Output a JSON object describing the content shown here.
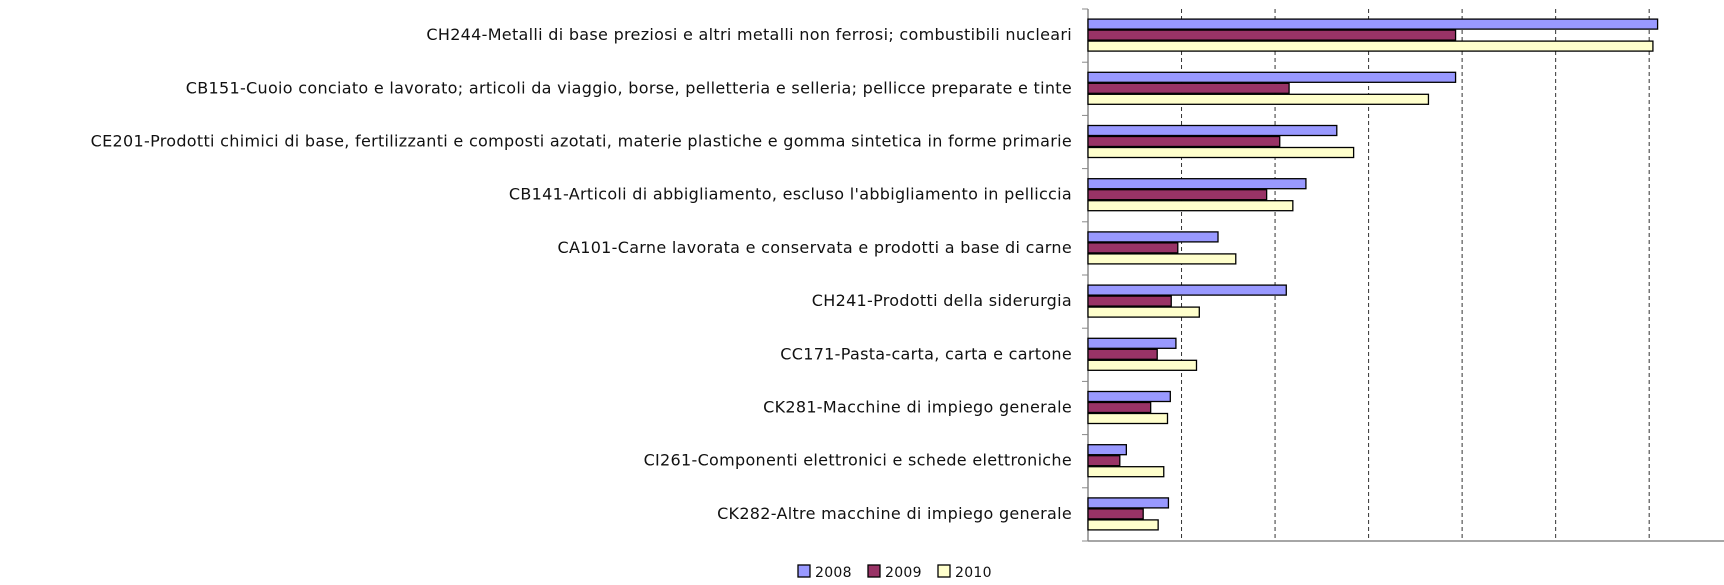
{
  "chart_data": {
    "type": "hbar",
    "categories": [
      "CH244-Metalli di base preziosi e altri metalli non ferrosi; combustibili nucleari",
      "CB151-Cuoio conciato e lavorato; articoli da viaggio, borse, pelletteria e selleria; pellicce preparate e tinte",
      "CE201-Prodotti chimici di base, fertilizzanti e composti azotati, materie plastiche e gomma sintetica in forme primarie",
      "CB141-Articoli di abbigliamento, escluso l'abbigliamento in pelliccia",
      "CA101-Carne lavorata e conservata e prodotti a base di carne",
      "CH241-Prodotti della siderurgia",
      "CC171-Pasta-carta, carta e cartone",
      "CK281-Macchine di impiego generale",
      "CI261-Componenti elettronici e schede elettroniche",
      "CK282-Altre macchine di impiego generale"
    ],
    "series": [
      {
        "name": "2008",
        "color": "#9999ff",
        "values": [
          6.09,
          3.93,
          2.66,
          2.33,
          1.39,
          2.12,
          0.94,
          0.88,
          0.41,
          0.86
        ]
      },
      {
        "name": "2009",
        "color": "#993366",
        "values": [
          3.93,
          2.15,
          2.05,
          1.91,
          0.96,
          0.89,
          0.74,
          0.67,
          0.34,
          0.59
        ]
      },
      {
        "name": "2010",
        "color": "#ffffcc",
        "values": [
          6.04,
          3.64,
          2.84,
          2.19,
          1.58,
          1.19,
          1.16,
          0.85,
          0.81,
          0.75
        ]
      }
    ],
    "xlim": [
      0,
      6.8
    ],
    "xticks": [
      0,
      1,
      2,
      3,
      4,
      5,
      6
    ],
    "grid": true
  }
}
